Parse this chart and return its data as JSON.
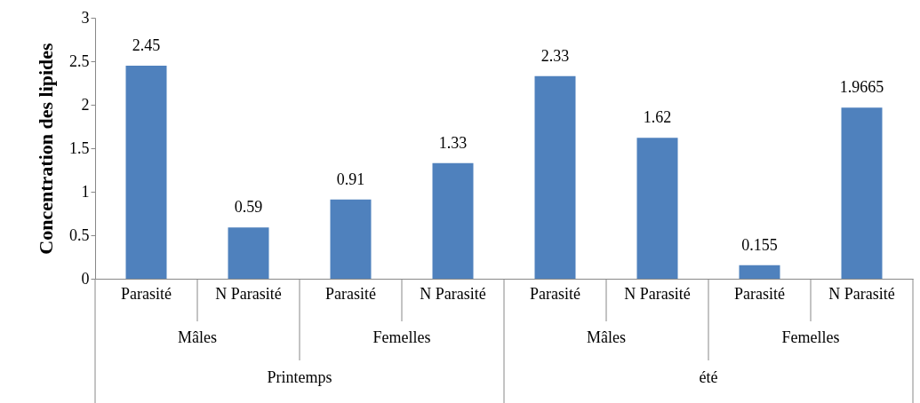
{
  "chart_data": {
    "type": "bar",
    "ylabel": "Concentration  des lipides",
    "categories": [
      "Parasité",
      "N Parasité",
      "Parasité",
      "N Parasité",
      "Parasité",
      "N Parasité",
      "Parasité",
      "N Parasité"
    ],
    "values": [
      2.45,
      0.59,
      0.91,
      1.33,
      2.33,
      1.62,
      0.155,
      1.9665
    ],
    "color": "#4f81bd",
    "ylim": [
      0,
      3
    ],
    "yticks": [
      0,
      0.5,
      1,
      1.5,
      2,
      2.5,
      3
    ],
    "data_labels": true,
    "grid": false,
    "annotations": [
      "Mâles",
      "Femelles",
      "Mâles",
      "Femelles",
      "Printemps",
      "été"
    ]
  }
}
